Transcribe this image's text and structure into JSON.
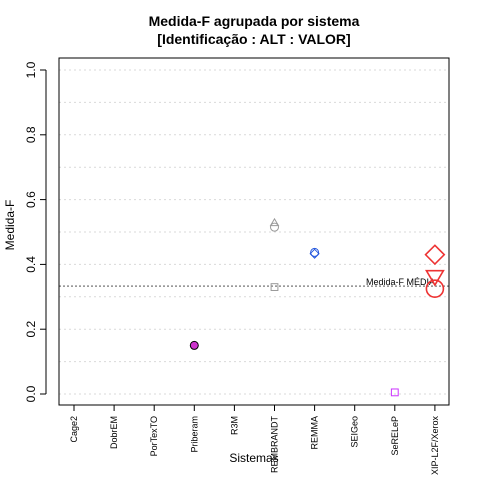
{
  "colors": {
    "background": "#ffffff",
    "axis": "#000000",
    "grid": "#d9d9d9",
    "mean_line": "#8c8c8c"
  },
  "chart_data": {
    "type": "scatter",
    "title": "Medida-F agrupada por sistema",
    "subtitle": "[Identificação : ALT : VALOR]",
    "xlabel": "Sistemas",
    "ylabel": "Medida-F",
    "ylim": [
      0.0,
      1.0
    ],
    "yticks": [
      "0.0",
      "0.2",
      "0.4",
      "0.6",
      "0.8",
      "1.0"
    ],
    "grid": true,
    "categories": [
      "Cage2",
      "DobrEM",
      "PorTexTO",
      "Priberam",
      "R3M",
      "REMBRANDT",
      "REMMA",
      "SEIGeo",
      "SeRELeP",
      "XIP-L2F/Xerox"
    ],
    "mean_line": {
      "label": "Medida-F MÉDIA",
      "y": 0.333
    },
    "points": [
      {
        "category": "Priberam",
        "shape": "circle",
        "y": 0.15,
        "color": "#000000",
        "fill": "#cc33cc",
        "size": "small"
      },
      {
        "category": "REMBRANDT",
        "shape": "triangle",
        "y": 0.527,
        "color": "#999999",
        "fill": "none",
        "size": "small"
      },
      {
        "category": "REMBRANDT",
        "shape": "circle",
        "y": 0.515,
        "color": "#999999",
        "fill": "none",
        "size": "small"
      },
      {
        "category": "REMBRANDT",
        "shape": "square",
        "y": 0.33,
        "color": "#999999",
        "fill": "none",
        "size": "small"
      },
      {
        "category": "REMMA",
        "shape": "circle",
        "y": 0.437,
        "color": "#2255dd",
        "fill": "none",
        "size": "small"
      },
      {
        "category": "REMMA",
        "shape": "diamond",
        "y": 0.433,
        "color": "#2255dd",
        "fill": "none",
        "size": "small"
      },
      {
        "category": "SeRELeP",
        "shape": "square",
        "y": 0.005,
        "color": "#cc33ff",
        "fill": "none",
        "size": "small"
      },
      {
        "category": "XIP-L2F/Xerox",
        "shape": "diamond",
        "y": 0.43,
        "color": "#ee3333",
        "fill": "none",
        "size": "large"
      },
      {
        "category": "XIP-L2F/Xerox",
        "shape": "triangle-down",
        "y": 0.365,
        "color": "#ee3333",
        "fill": "none",
        "size": "large"
      },
      {
        "category": "XIP-L2F/Xerox",
        "shape": "circle",
        "y": 0.325,
        "color": "#ee3333",
        "fill": "none",
        "size": "large"
      }
    ]
  }
}
